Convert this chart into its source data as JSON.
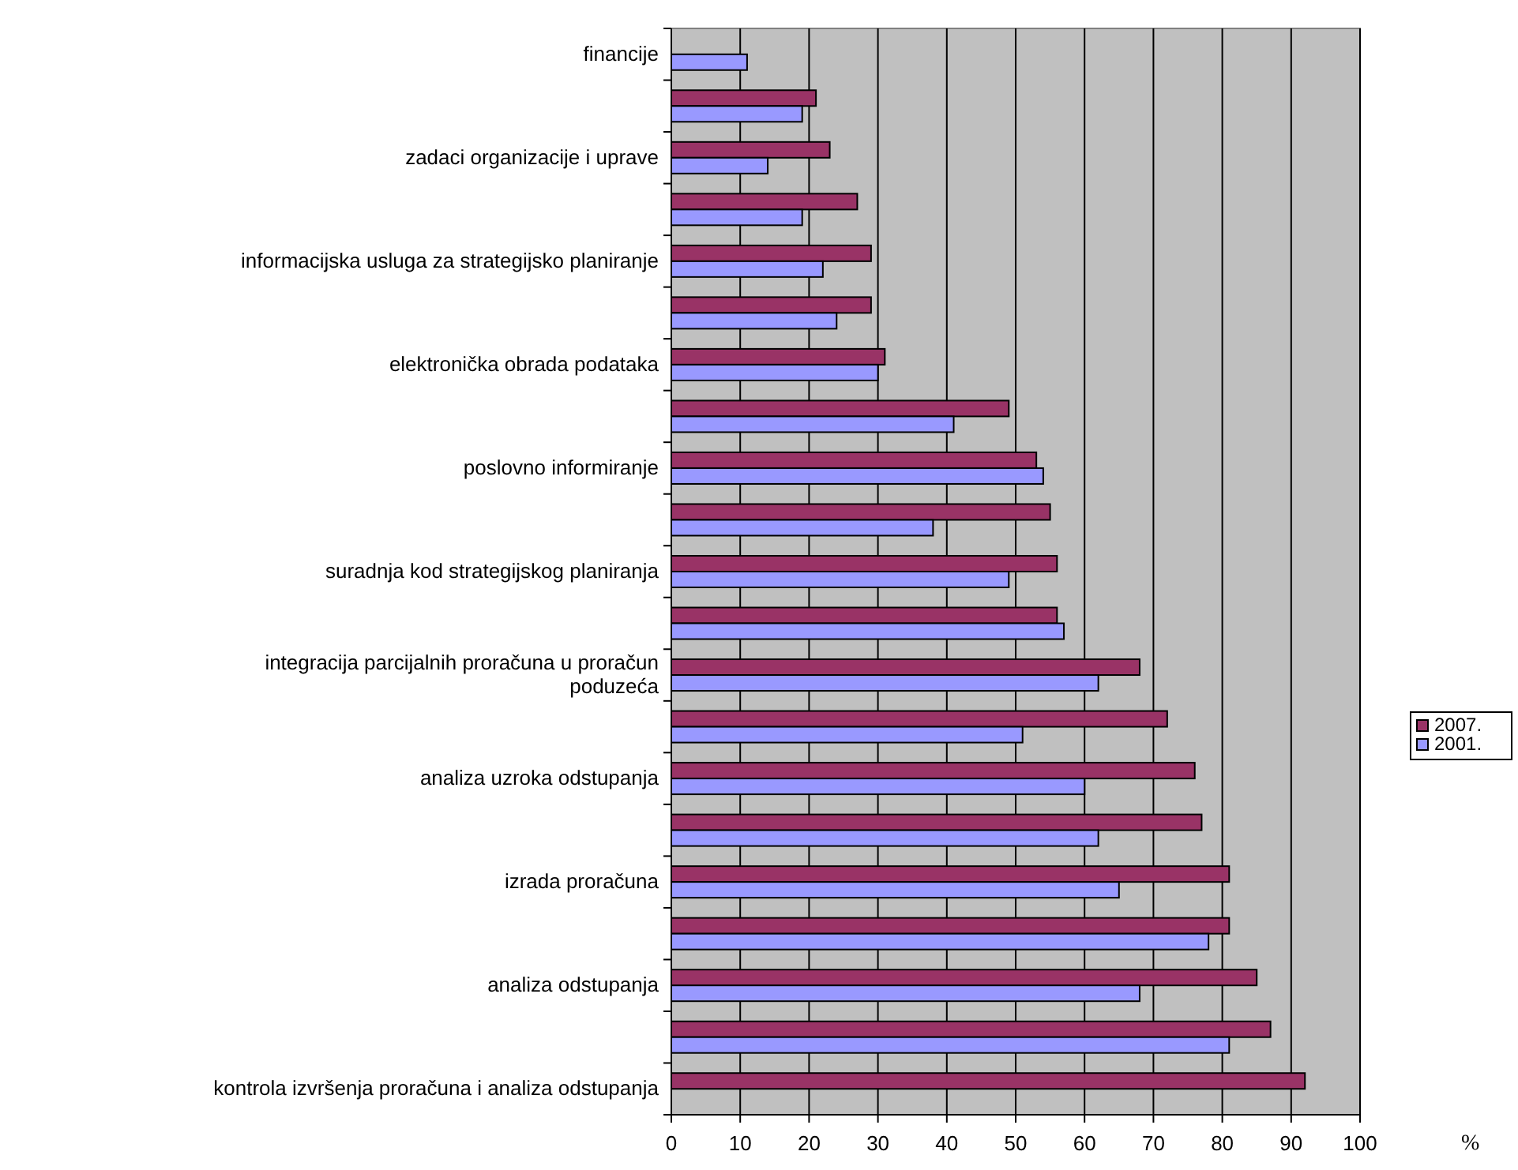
{
  "chart_data": {
    "type": "bar",
    "orientation": "horizontal",
    "xlabel": "%",
    "categories": [
      "financije",
      null,
      "zadaci organizacije i uprave",
      null,
      "informacijska usluga za strategijsko planiranje",
      null,
      "elektronička obrada podataka",
      null,
      "poslovno informiranje",
      null,
      "suradnja kod strategijskog planiranja",
      null,
      "integracija parcijalnih proračuna u proračun poduzeća",
      null,
      "analiza uzroka odstupanja",
      null,
      "izrada proračuna",
      null,
      "analiza odstupanja",
      null,
      "kontrola izvršenja proračuna i analiza odstupanja"
    ],
    "series": [
      {
        "name": "2007.",
        "color": "#993366",
        "values": [
          null,
          21,
          23,
          27,
          29,
          29,
          31,
          49,
          53,
          55,
          56,
          56,
          68,
          72,
          76,
          77,
          81,
          81,
          85,
          87,
          92
        ]
      },
      {
        "name": "2001.",
        "color": "#9999ff",
        "values": [
          11,
          19,
          14,
          19,
          22,
          24,
          30,
          41,
          54,
          38,
          49,
          57,
          62,
          51,
          60,
          62,
          65,
          78,
          68,
          81,
          null
        ]
      }
    ],
    "xlim": [
      0,
      100
    ],
    "xticks": [
      0,
      10,
      20,
      30,
      40,
      50,
      60,
      70,
      80,
      90,
      100
    ],
    "grid": "x",
    "legend": "right"
  }
}
